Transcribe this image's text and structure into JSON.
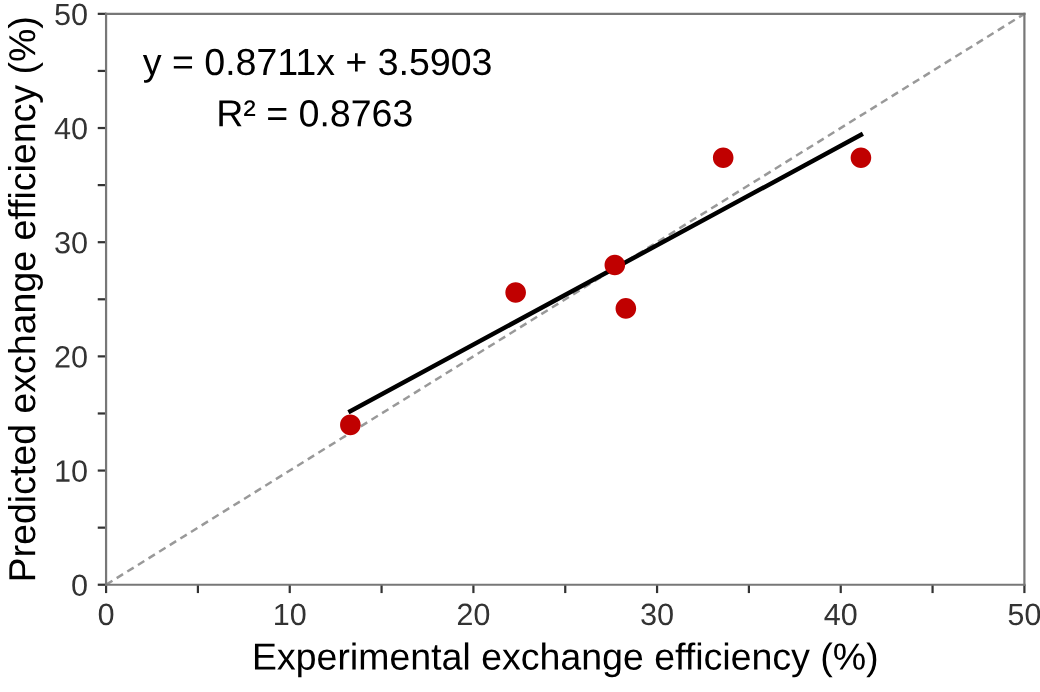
{
  "chart_data": {
    "type": "scatter",
    "xlabel": "Experimental exchange efficiency (%)",
    "ylabel": "Predicted exchange efficiency (%)",
    "series": [
      {
        "type": "line",
        "color": "#999999",
        "line_style": "dashed",
        "marker": "none",
        "x": [
          0,
          50
        ],
        "values": [
          0,
          50
        ]
      },
      {
        "type": "line",
        "color": "#000000",
        "line_style": "solid",
        "marker": "none",
        "x": [
          13.3,
          41.1
        ],
        "values": [
          15.2,
          39.4
        ]
      },
      {
        "color": "#c00000",
        "marker": "circle",
        "x": [
          13.3,
          22.3,
          27.7,
          28.3,
          33.6,
          41.1
        ],
        "values": [
          14.0,
          25.6,
          28.0,
          24.2,
          37.4,
          37.4
        ]
      }
    ],
    "xlim": [
      0,
      50
    ],
    "ylim": [
      0,
      50
    ],
    "xticks": [
      0,
      {
        "value": 5,
        "label": null
      },
      10,
      {
        "value": 15,
        "label": null
      },
      20,
      {
        "value": 25,
        "label": null
      },
      30,
      {
        "value": 35,
        "label": null
      },
      40,
      {
        "value": 45,
        "label": null
      },
      50
    ],
    "yticks": [
      0,
      {
        "value": 5,
        "label": null
      },
      10,
      {
        "value": 15,
        "label": null
      },
      20,
      {
        "value": 25,
        "label": null
      },
      30,
      {
        "value": 35,
        "label": null
      },
      40,
      {
        "value": 45,
        "label": null
      },
      50
    ],
    "grid": false,
    "legend": false,
    "annotations": [
      "y = 0.8711x + 3.5903",
      "R² = 0.8763"
    ]
  }
}
